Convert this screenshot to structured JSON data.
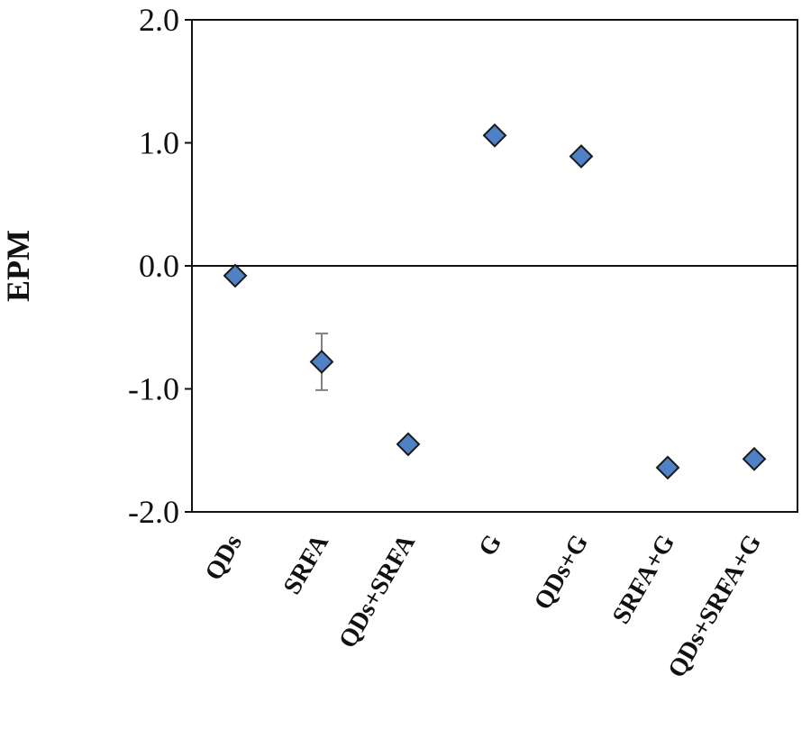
{
  "chart_data": {
    "type": "scatter",
    "title": "",
    "xlabel": "",
    "ylabel": "EPM",
    "categories": [
      "QDs",
      "SRFA",
      "QDs+SRFA",
      "G",
      "QDs+G",
      "SRFA+G",
      "QDs+SRFA+G"
    ],
    "values": [
      -0.08,
      -0.78,
      -1.45,
      1.06,
      0.89,
      -1.64,
      -1.57
    ],
    "error_bars": [
      null,
      0.23,
      null,
      null,
      null,
      null,
      null
    ],
    "ylim": [
      -2.0,
      2.0
    ],
    "yticks": [
      "2.0",
      "1.0",
      "0.0",
      "-1.0",
      "-2.0"
    ],
    "yticks_values": [
      2,
      1,
      0,
      -1,
      -2
    ],
    "reference_line": 0,
    "grid": false,
    "legend": "none",
    "marker": "diamond",
    "marker_color": "#4f81c7",
    "marker_edge_color": "#1a1a1a",
    "error_bar_color": "#808080"
  }
}
